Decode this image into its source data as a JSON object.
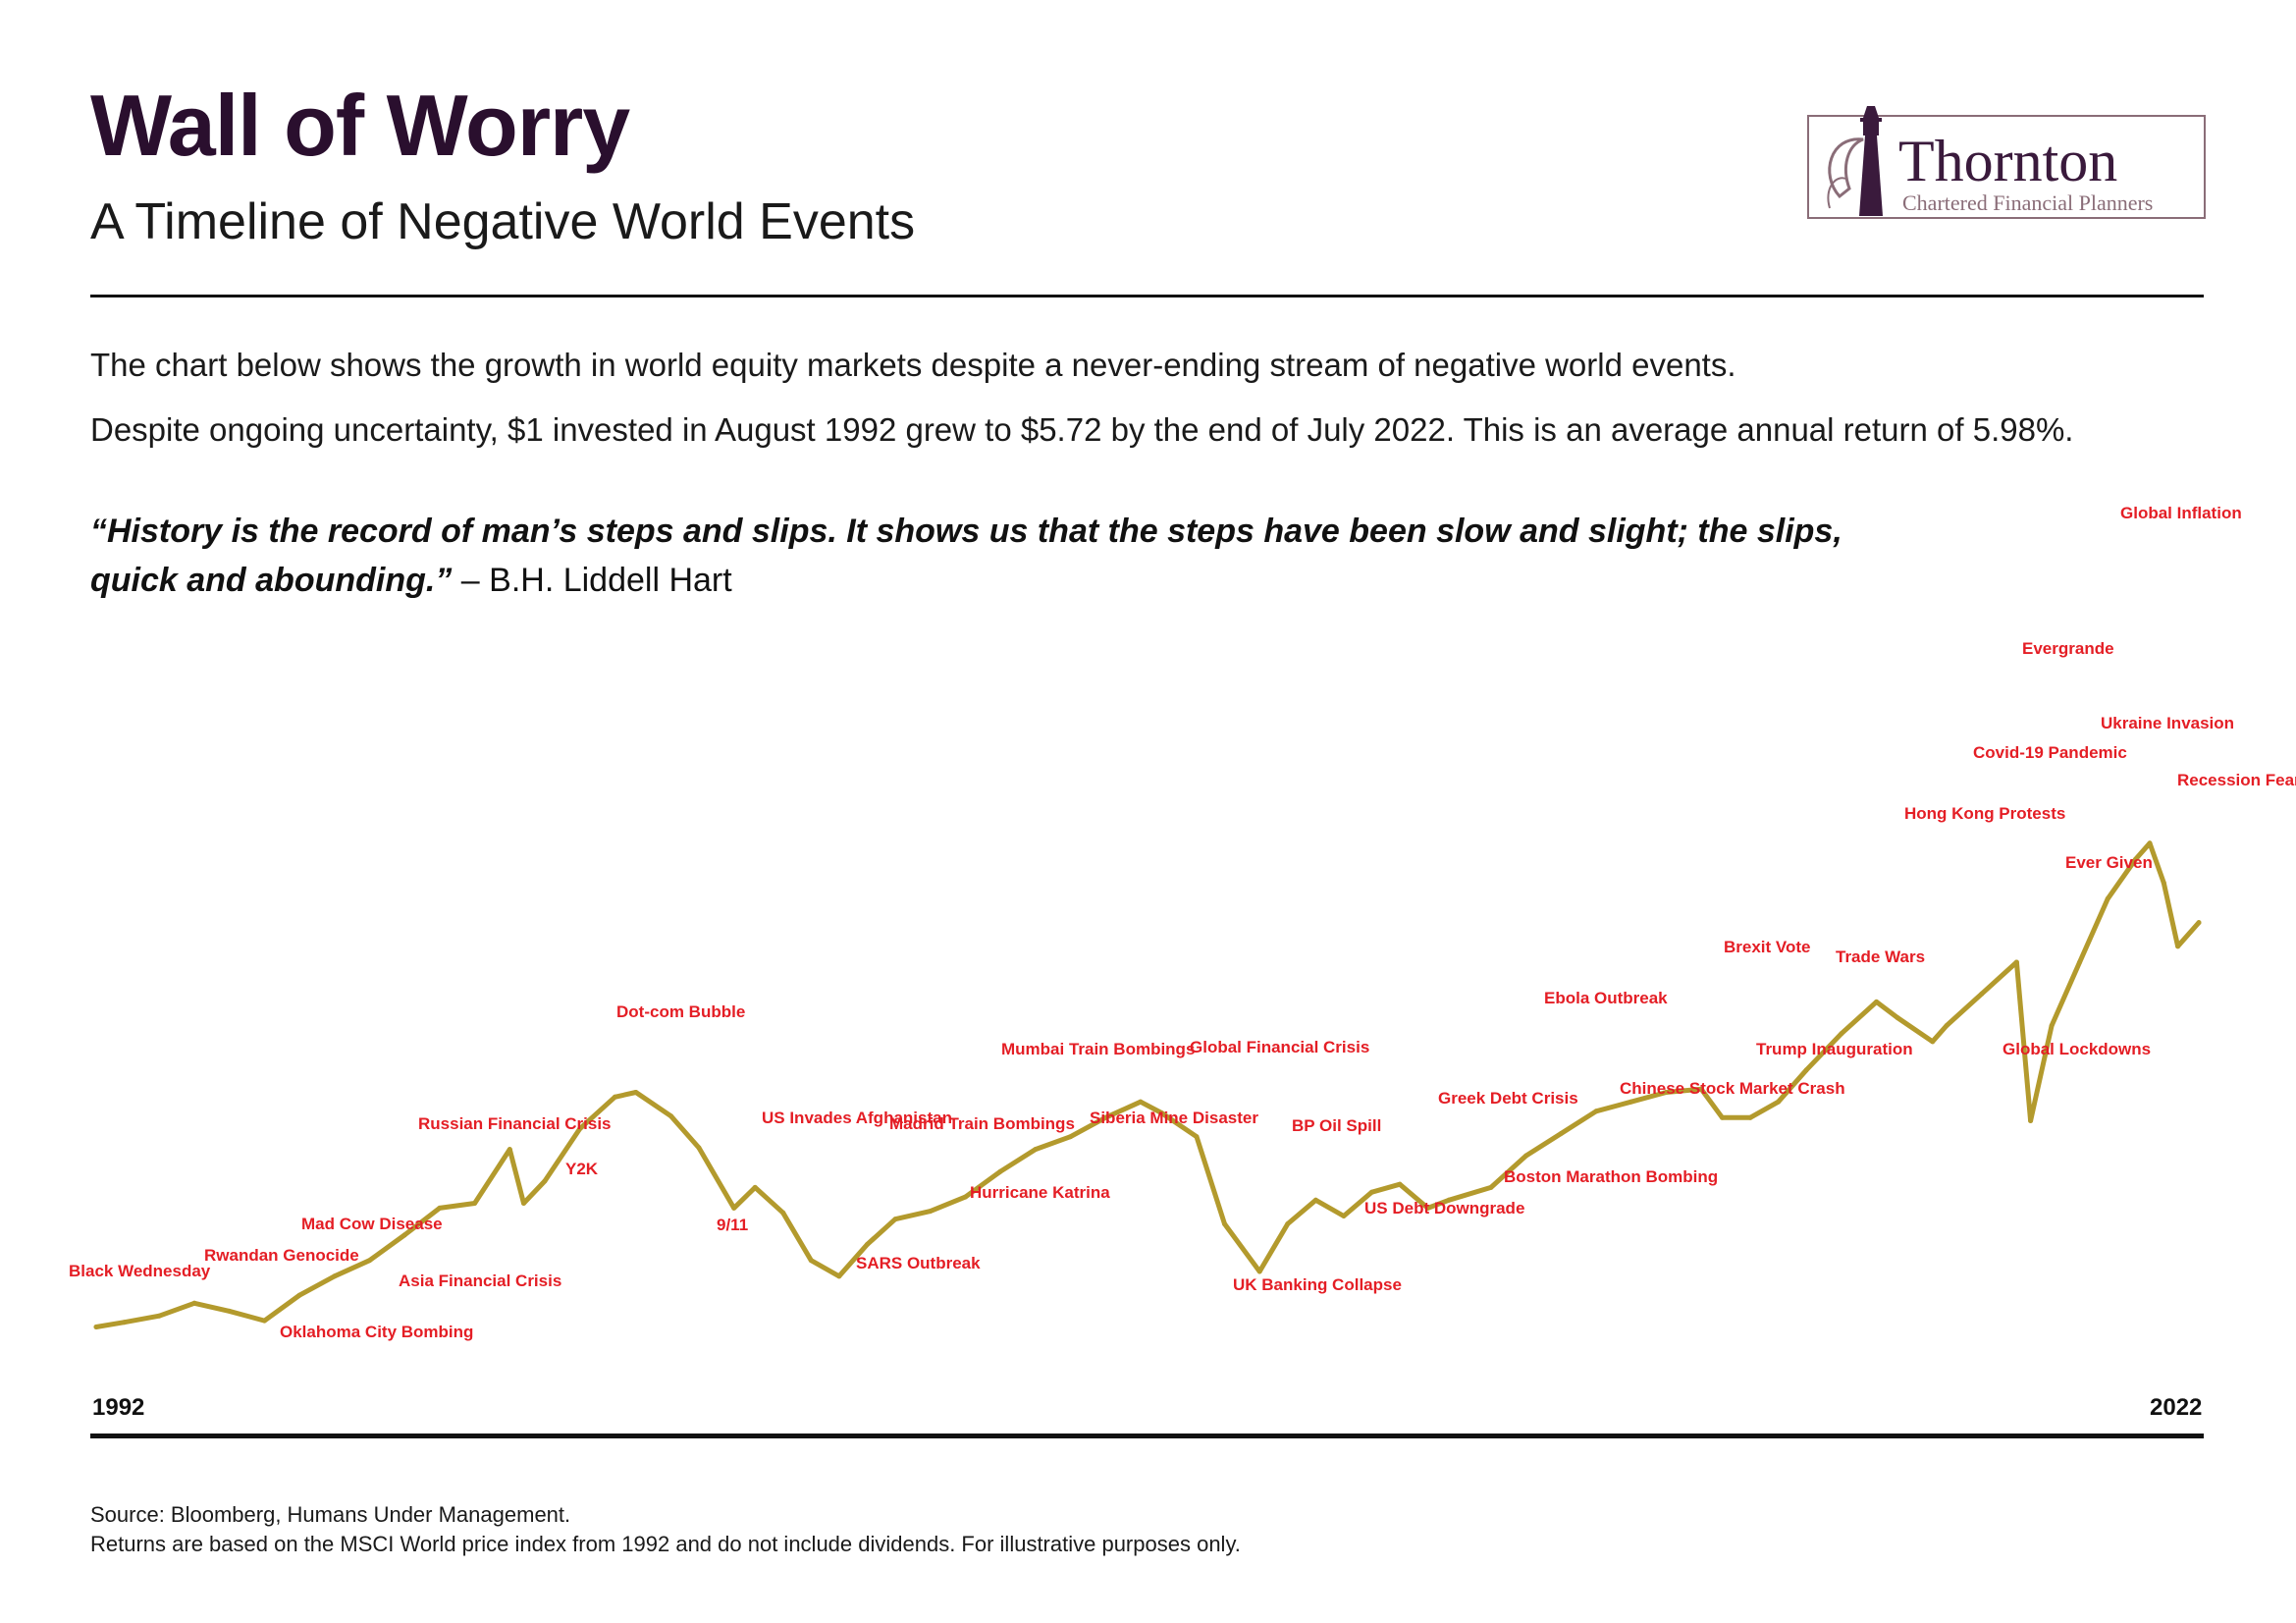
{
  "header": {
    "title": "Wall of Worry",
    "subtitle": "A Timeline of Negative World Events"
  },
  "logo": {
    "name": "Thornton",
    "tagline": "Chartered Financial Planners",
    "colors": {
      "primary": "#3a1a3c",
      "accent": "#8a6d78"
    }
  },
  "intro": {
    "line1": "The chart below shows the growth in world equity markets despite a never-ending stream of negative world events.",
    "line2": "Despite ongoing uncertainty, $1 invested in August 1992 grew to $5.72 by the end of July 2022. This is an average annual return of 5.98%."
  },
  "quote": {
    "text": "“History is the record of man’s steps and slips. It shows us that the steps have been slow and slight; the slips, quick and abounding.”",
    "attribution": "– B.H. Liddell Hart"
  },
  "footer": {
    "source": "Source: Bloomberg, Humans Under Management.",
    "note": "Returns are based on the MSCI World price index from 1992 and do not include dividends. For illustrative purposes only."
  },
  "chart_data": {
    "type": "line",
    "title": "",
    "xlabel": "",
    "ylabel": "",
    "x_labels": {
      "start": "1992",
      "end": "2022"
    },
    "xlim": [
      1992.6,
      2022.6
    ],
    "ylim": [
      0,
      5.2
    ],
    "grid": false,
    "line_color": "#b39a2d",
    "annotation_color": "#e41e25",
    "series": [
      {
        "values": [
          [
            1992.6,
            0.3
          ],
          [
            1993.0,
            0.33
          ],
          [
            1993.5,
            0.37
          ],
          [
            1994.0,
            0.45
          ],
          [
            1994.5,
            0.4
          ],
          [
            1995.0,
            0.34
          ],
          [
            1995.5,
            0.5
          ],
          [
            1996.0,
            0.62
          ],
          [
            1996.5,
            0.72
          ],
          [
            1997.0,
            0.88
          ],
          [
            1997.5,
            1.05
          ],
          [
            1998.0,
            1.08
          ],
          [
            1998.5,
            1.42
          ],
          [
            1998.7,
            1.08
          ],
          [
            1999.0,
            1.22
          ],
          [
            1999.5,
            1.55
          ],
          [
            2000.0,
            1.75
          ],
          [
            2000.3,
            1.78
          ],
          [
            2000.8,
            1.63
          ],
          [
            2001.2,
            1.43
          ],
          [
            2001.7,
            1.05
          ],
          [
            2002.0,
            1.18
          ],
          [
            2002.4,
            1.02
          ],
          [
            2002.8,
            0.72
          ],
          [
            2003.2,
            0.62
          ],
          [
            2003.6,
            0.82
          ],
          [
            2004.0,
            0.98
          ],
          [
            2004.5,
            1.03
          ],
          [
            2005.0,
            1.12
          ],
          [
            2005.5,
            1.28
          ],
          [
            2006.0,
            1.42
          ],
          [
            2006.5,
            1.5
          ],
          [
            2007.0,
            1.62
          ],
          [
            2007.5,
            1.72
          ],
          [
            2007.8,
            1.65
          ],
          [
            2008.3,
            1.5
          ],
          [
            2008.7,
            0.95
          ],
          [
            2009.2,
            0.65
          ],
          [
            2009.6,
            0.95
          ],
          [
            2010.0,
            1.1
          ],
          [
            2010.4,
            1.0
          ],
          [
            2010.8,
            1.15
          ],
          [
            2011.2,
            1.2
          ],
          [
            2011.6,
            1.05
          ],
          [
            2011.9,
            1.1
          ],
          [
            2012.5,
            1.18
          ],
          [
            2013.0,
            1.38
          ],
          [
            2013.5,
            1.52
          ],
          [
            2014.0,
            1.66
          ],
          [
            2014.5,
            1.72
          ],
          [
            2015.0,
            1.78
          ],
          [
            2015.5,
            1.8
          ],
          [
            2015.8,
            1.62
          ],
          [
            2016.2,
            1.62
          ],
          [
            2016.6,
            1.72
          ],
          [
            2017.0,
            1.92
          ],
          [
            2017.5,
            2.15
          ],
          [
            2018.0,
            2.35
          ],
          [
            2018.3,
            2.25
          ],
          [
            2018.8,
            2.1
          ],
          [
            2019.0,
            2.2
          ],
          [
            2019.5,
            2.4
          ],
          [
            2020.0,
            2.6
          ],
          [
            2020.2,
            1.6
          ],
          [
            2020.5,
            2.2
          ],
          [
            2020.9,
            2.6
          ],
          [
            2021.3,
            3.0
          ],
          [
            2021.7,
            3.25
          ],
          [
            2021.9,
            3.35
          ],
          [
            2022.1,
            3.1
          ],
          [
            2022.3,
            2.7
          ],
          [
            2022.6,
            2.85
          ]
        ]
      }
    ],
    "annotations": [
      {
        "text": "Black Wednesday",
        "x": 1992.7
      },
      {
        "text": "Rwandan Genocide",
        "x": 1994.3
      },
      {
        "text": "Oklahoma City Bombing",
        "x": 1995.3
      },
      {
        "text": "Mad Cow Disease",
        "x": 1996.2
      },
      {
        "text": "Asia Financial Crisis",
        "x": 1997.5
      },
      {
        "text": "Russian Financial Crisis",
        "x": 1998.6
      },
      {
        "text": "Y2K",
        "x": 1999.9
      },
      {
        "text": "Dot-com Bubble",
        "x": 2000.2
      },
      {
        "text": "9/11",
        "x": 2001.7
      },
      {
        "text": "US Invades Afghanistan",
        "x": 2001.8
      },
      {
        "text": "SARS Outbreak",
        "x": 2003.2
      },
      {
        "text": "Madrid Train Bombings",
        "x": 2004.2
      },
      {
        "text": "Hurricane Katrina",
        "x": 2005.7
      },
      {
        "text": "Mumbai Train Bombings",
        "x": 2006.5
      },
      {
        "text": "Siberia Mine Disaster",
        "x": 2007.2
      },
      {
        "text": "Global Financial Crisis",
        "x": 2008.7
      },
      {
        "text": "UK Banking Collapse",
        "x": 2008.8
      },
      {
        "text": "BP Oil Spill",
        "x": 2010.3
      },
      {
        "text": "US Debt Downgrade",
        "x": 2011.6
      },
      {
        "text": "Greek Debt Crisis",
        "x": 2011.9
      },
      {
        "text": "Boston Marathon Bombing",
        "x": 2013.3
      },
      {
        "text": "Ebola Outbreak",
        "x": 2014.5
      },
      {
        "text": "Chinese Stock Market Crash",
        "x": 2015.5
      },
      {
        "text": "Brexit Vote",
        "x": 2016.5
      },
      {
        "text": "Trump Inauguration",
        "x": 2017.0
      },
      {
        "text": "Trade Wars",
        "x": 2018.5
      },
      {
        "text": "Hong Kong Protests",
        "x": 2019.5
      },
      {
        "text": "Covid-19 Pandemic",
        "x": 2020.0
      },
      {
        "text": "Global Lockdowns",
        "x": 2020.2
      },
      {
        "text": "Ever Given",
        "x": 2021.2
      },
      {
        "text": "Evergrande",
        "x": 2021.7
      },
      {
        "text": "Ukraine Invasion",
        "x": 2022.0
      },
      {
        "text": "Global Inflation",
        "x": 2022.2
      },
      {
        "text": "Recession Fears",
        "x": 2022.6
      }
    ]
  }
}
